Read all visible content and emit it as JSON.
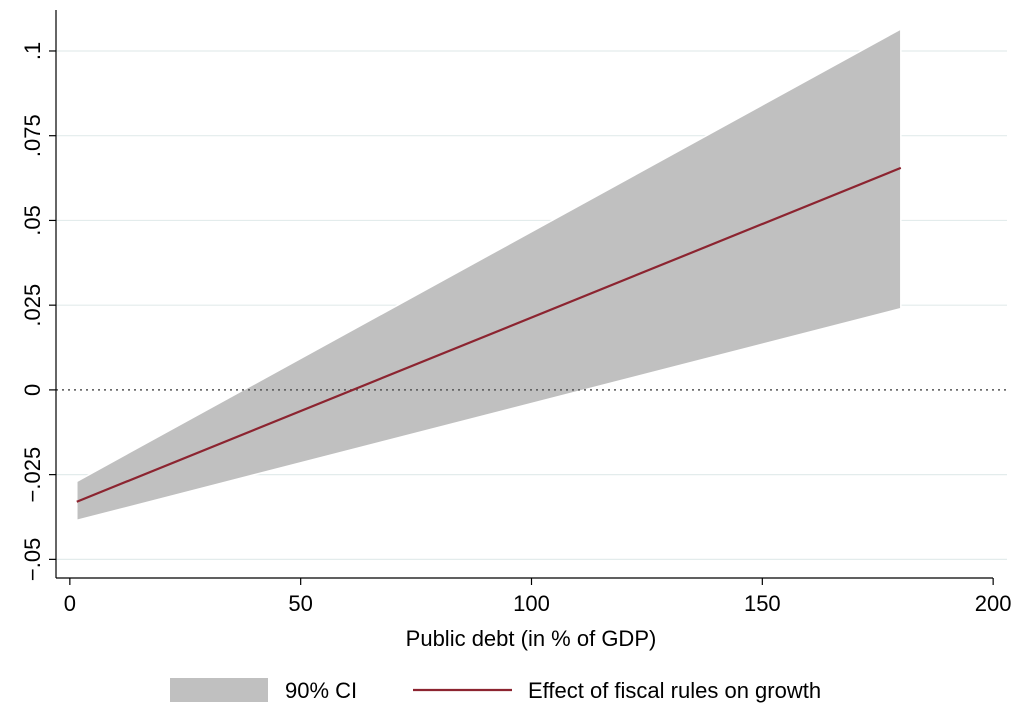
{
  "chart_data": {
    "type": "line",
    "xlabel": "Public debt (in % of GDP)",
    "ylabel": "",
    "xlim": [
      -3,
      203
    ],
    "ylim": [
      -0.0555,
      0.1115
    ],
    "x_ticks": [
      0,
      50,
      100,
      150,
      200
    ],
    "x_tick_labels": [
      "0",
      "50",
      "100",
      "150",
      "200"
    ],
    "y_ticks": [
      -0.05,
      -0.025,
      0,
      0.025,
      0.05,
      0.075,
      0.1
    ],
    "y_tick_labels": [
      "−.05",
      "−.025",
      "0",
      ".025",
      ".05",
      ".075",
      ".1"
    ],
    "grid": true,
    "reference_line": {
      "y": 0,
      "style": "dotted"
    },
    "series": [
      {
        "name": "90% CI",
        "kind": "band",
        "x": [
          1.5,
          180
        ],
        "lower": [
          -0.0385,
          0.024
        ],
        "upper": [
          -0.027,
          0.1065
        ],
        "color": "#c0c0c0"
      },
      {
        "name": "Effect of fiscal rules on growth",
        "kind": "line",
        "x": [
          1.5,
          180
        ],
        "y": [
          -0.033,
          0.0655
        ],
        "color": "#8c2430"
      }
    ],
    "legend_position": "bottom"
  }
}
